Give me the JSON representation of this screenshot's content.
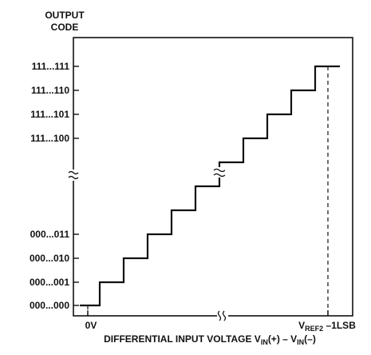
{
  "y_axis_title": [
    "OUTPUT",
    "CODE"
  ],
  "y_tick_labels_top": [
    "111...111",
    "111...110",
    "111...101",
    "111...100"
  ],
  "y_tick_labels_bottom": [
    "000...011",
    "000...010",
    "000...001",
    "000...000"
  ],
  "x_label_left": "0V",
  "x_label_right": {
    "main": "V",
    "sub": "REF2",
    "suffix": " –1LSB"
  },
  "x_axis_title": {
    "a": "DIFFERENTIAL INPUT VOLTAGE V",
    "a_sub": "IN",
    "b": "(+) – V",
    "b_sub": "IN",
    "c": "(–)"
  },
  "break_symbol": "≈"
}
